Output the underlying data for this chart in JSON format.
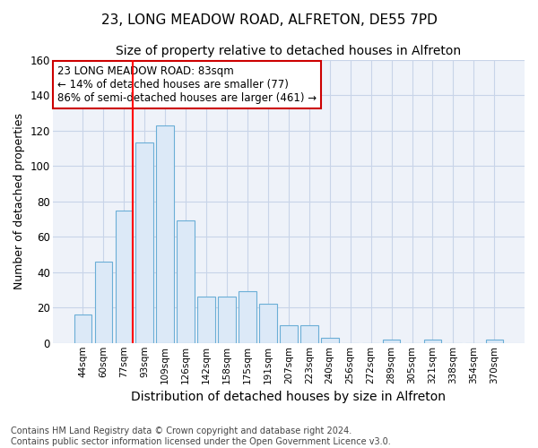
{
  "title1": "23, LONG MEADOW ROAD, ALFRETON, DE55 7PD",
  "title2": "Size of property relative to detached houses in Alfreton",
  "xlabel": "Distribution of detached houses by size in Alfreton",
  "ylabel": "Number of detached properties",
  "bar_labels": [
    "44sqm",
    "60sqm",
    "77sqm",
    "93sqm",
    "109sqm",
    "126sqm",
    "142sqm",
    "158sqm",
    "175sqm",
    "191sqm",
    "207sqm",
    "223sqm",
    "240sqm",
    "256sqm",
    "272sqm",
    "289sqm",
    "305sqm",
    "321sqm",
    "338sqm",
    "354sqm",
    "370sqm"
  ],
  "bar_values": [
    16,
    46,
    75,
    113,
    123,
    69,
    26,
    26,
    29,
    22,
    10,
    10,
    3,
    0,
    0,
    2,
    0,
    2,
    0,
    0,
    2
  ],
  "bar_color": "#dce9f7",
  "bar_edge_color": "#6baed6",
  "ylim": [
    0,
    160
  ],
  "yticks": [
    0,
    20,
    40,
    60,
    80,
    100,
    120,
    140,
    160
  ],
  "annotation_text": "23 LONG MEADOW ROAD: 83sqm\n← 14% of detached houses are smaller (77)\n86% of semi-detached houses are larger (461) →",
  "annotation_box_color": "#ffffff",
  "annotation_box_edge": "#cc0000",
  "footnote": "Contains HM Land Registry data © Crown copyright and database right 2024.\nContains public sector information licensed under the Open Government Licence v3.0.",
  "background_color": "#ffffff",
  "plot_bg_color": "#eef2f9",
  "grid_color": "#c8d4e8",
  "title1_fontsize": 11,
  "title2_fontsize": 10,
  "xlabel_fontsize": 10,
  "ylabel_fontsize": 9,
  "footnote_fontsize": 7
}
